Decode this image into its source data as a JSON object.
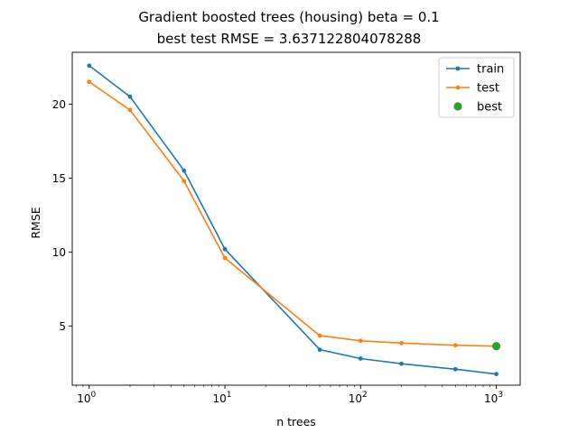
{
  "chart_data": {
    "type": "line",
    "title": "Gradient boosted trees (housing) beta = 0.1",
    "subtitle": "best test RMSE = 3.637122804078288",
    "xlabel": "n trees",
    "ylabel": "RMSE",
    "x_scale": "log",
    "xlim": [
      0.75,
      1500
    ],
    "ylim": [
      1.0,
      23.5
    ],
    "x_ticks": [
      {
        "value": 1,
        "base": "10",
        "exp": "0"
      },
      {
        "value": 10,
        "base": "10",
        "exp": "1"
      },
      {
        "value": 100,
        "base": "10",
        "exp": "2"
      },
      {
        "value": 1000,
        "base": "10",
        "exp": "3"
      }
    ],
    "y_ticks": [
      {
        "value": 5,
        "label": "5"
      },
      {
        "value": 10,
        "label": "10"
      },
      {
        "value": 15,
        "label": "15"
      },
      {
        "value": 20,
        "label": "20"
      }
    ],
    "legend_position": "top-right",
    "grid": false,
    "x": [
      1,
      2,
      5,
      10,
      50,
      100,
      200,
      500,
      1000
    ],
    "series": [
      {
        "name": "train",
        "color": "#1f77b4",
        "marker": "dot",
        "line": true,
        "values": [
          22.6,
          20.5,
          15.5,
          10.2,
          3.4,
          2.8,
          2.45,
          2.08,
          1.75
        ]
      },
      {
        "name": "test",
        "color": "#ff7f0e",
        "marker": "dot",
        "line": true,
        "values": [
          21.5,
          19.6,
          14.8,
          9.6,
          4.35,
          4.0,
          3.85,
          3.7,
          3.637
        ]
      },
      {
        "name": "best",
        "color": "#2ca02c",
        "marker": "circle",
        "line": false,
        "points": [
          {
            "x": 1000,
            "y": 3.637
          }
        ]
      }
    ]
  }
}
